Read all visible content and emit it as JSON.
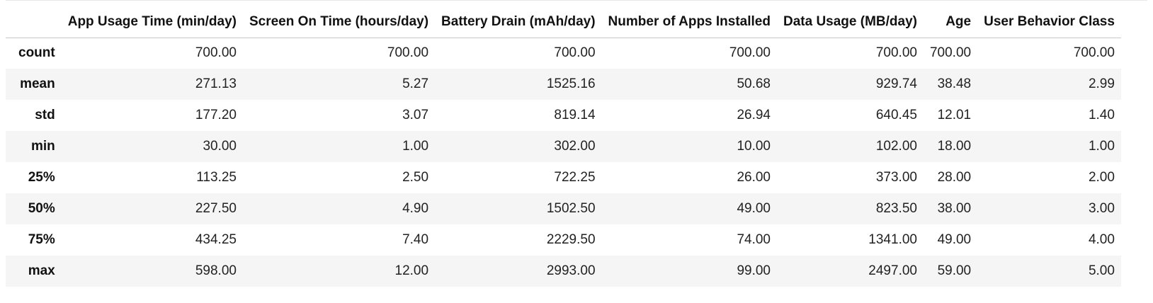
{
  "table": {
    "columns": [
      "App Usage Time (min/day)",
      "Screen On Time (hours/day)",
      "Battery Drain (mAh/day)",
      "Number of Apps Installed",
      "Data Usage (MB/day)",
      "Age",
      "User Behavior Class"
    ],
    "rows": [
      {
        "label": "count",
        "values": [
          "700.00",
          "700.00",
          "700.00",
          "700.00",
          "700.00",
          "700.00",
          "700.00"
        ]
      },
      {
        "label": "mean",
        "values": [
          "271.13",
          "5.27",
          "1525.16",
          "50.68",
          "929.74",
          "38.48",
          "2.99"
        ]
      },
      {
        "label": "std",
        "values": [
          "177.20",
          "3.07",
          "819.14",
          "26.94",
          "640.45",
          "12.01",
          "1.40"
        ]
      },
      {
        "label": "min",
        "values": [
          "30.00",
          "1.00",
          "302.00",
          "10.00",
          "102.00",
          "18.00",
          "1.00"
        ]
      },
      {
        "label": "25%",
        "values": [
          "113.25",
          "2.50",
          "722.25",
          "26.00",
          "373.00",
          "28.00",
          "2.00"
        ]
      },
      {
        "label": "50%",
        "values": [
          "227.50",
          "4.90",
          "1502.50",
          "49.00",
          "823.50",
          "38.00",
          "3.00"
        ]
      },
      {
        "label": "75%",
        "values": [
          "434.25",
          "7.40",
          "2229.50",
          "74.00",
          "1341.00",
          "49.00",
          "4.00"
        ]
      },
      {
        "label": "max",
        "values": [
          "598.00",
          "12.00",
          "2993.00",
          "99.00",
          "2497.00",
          "59.00",
          "5.00"
        ]
      }
    ]
  }
}
